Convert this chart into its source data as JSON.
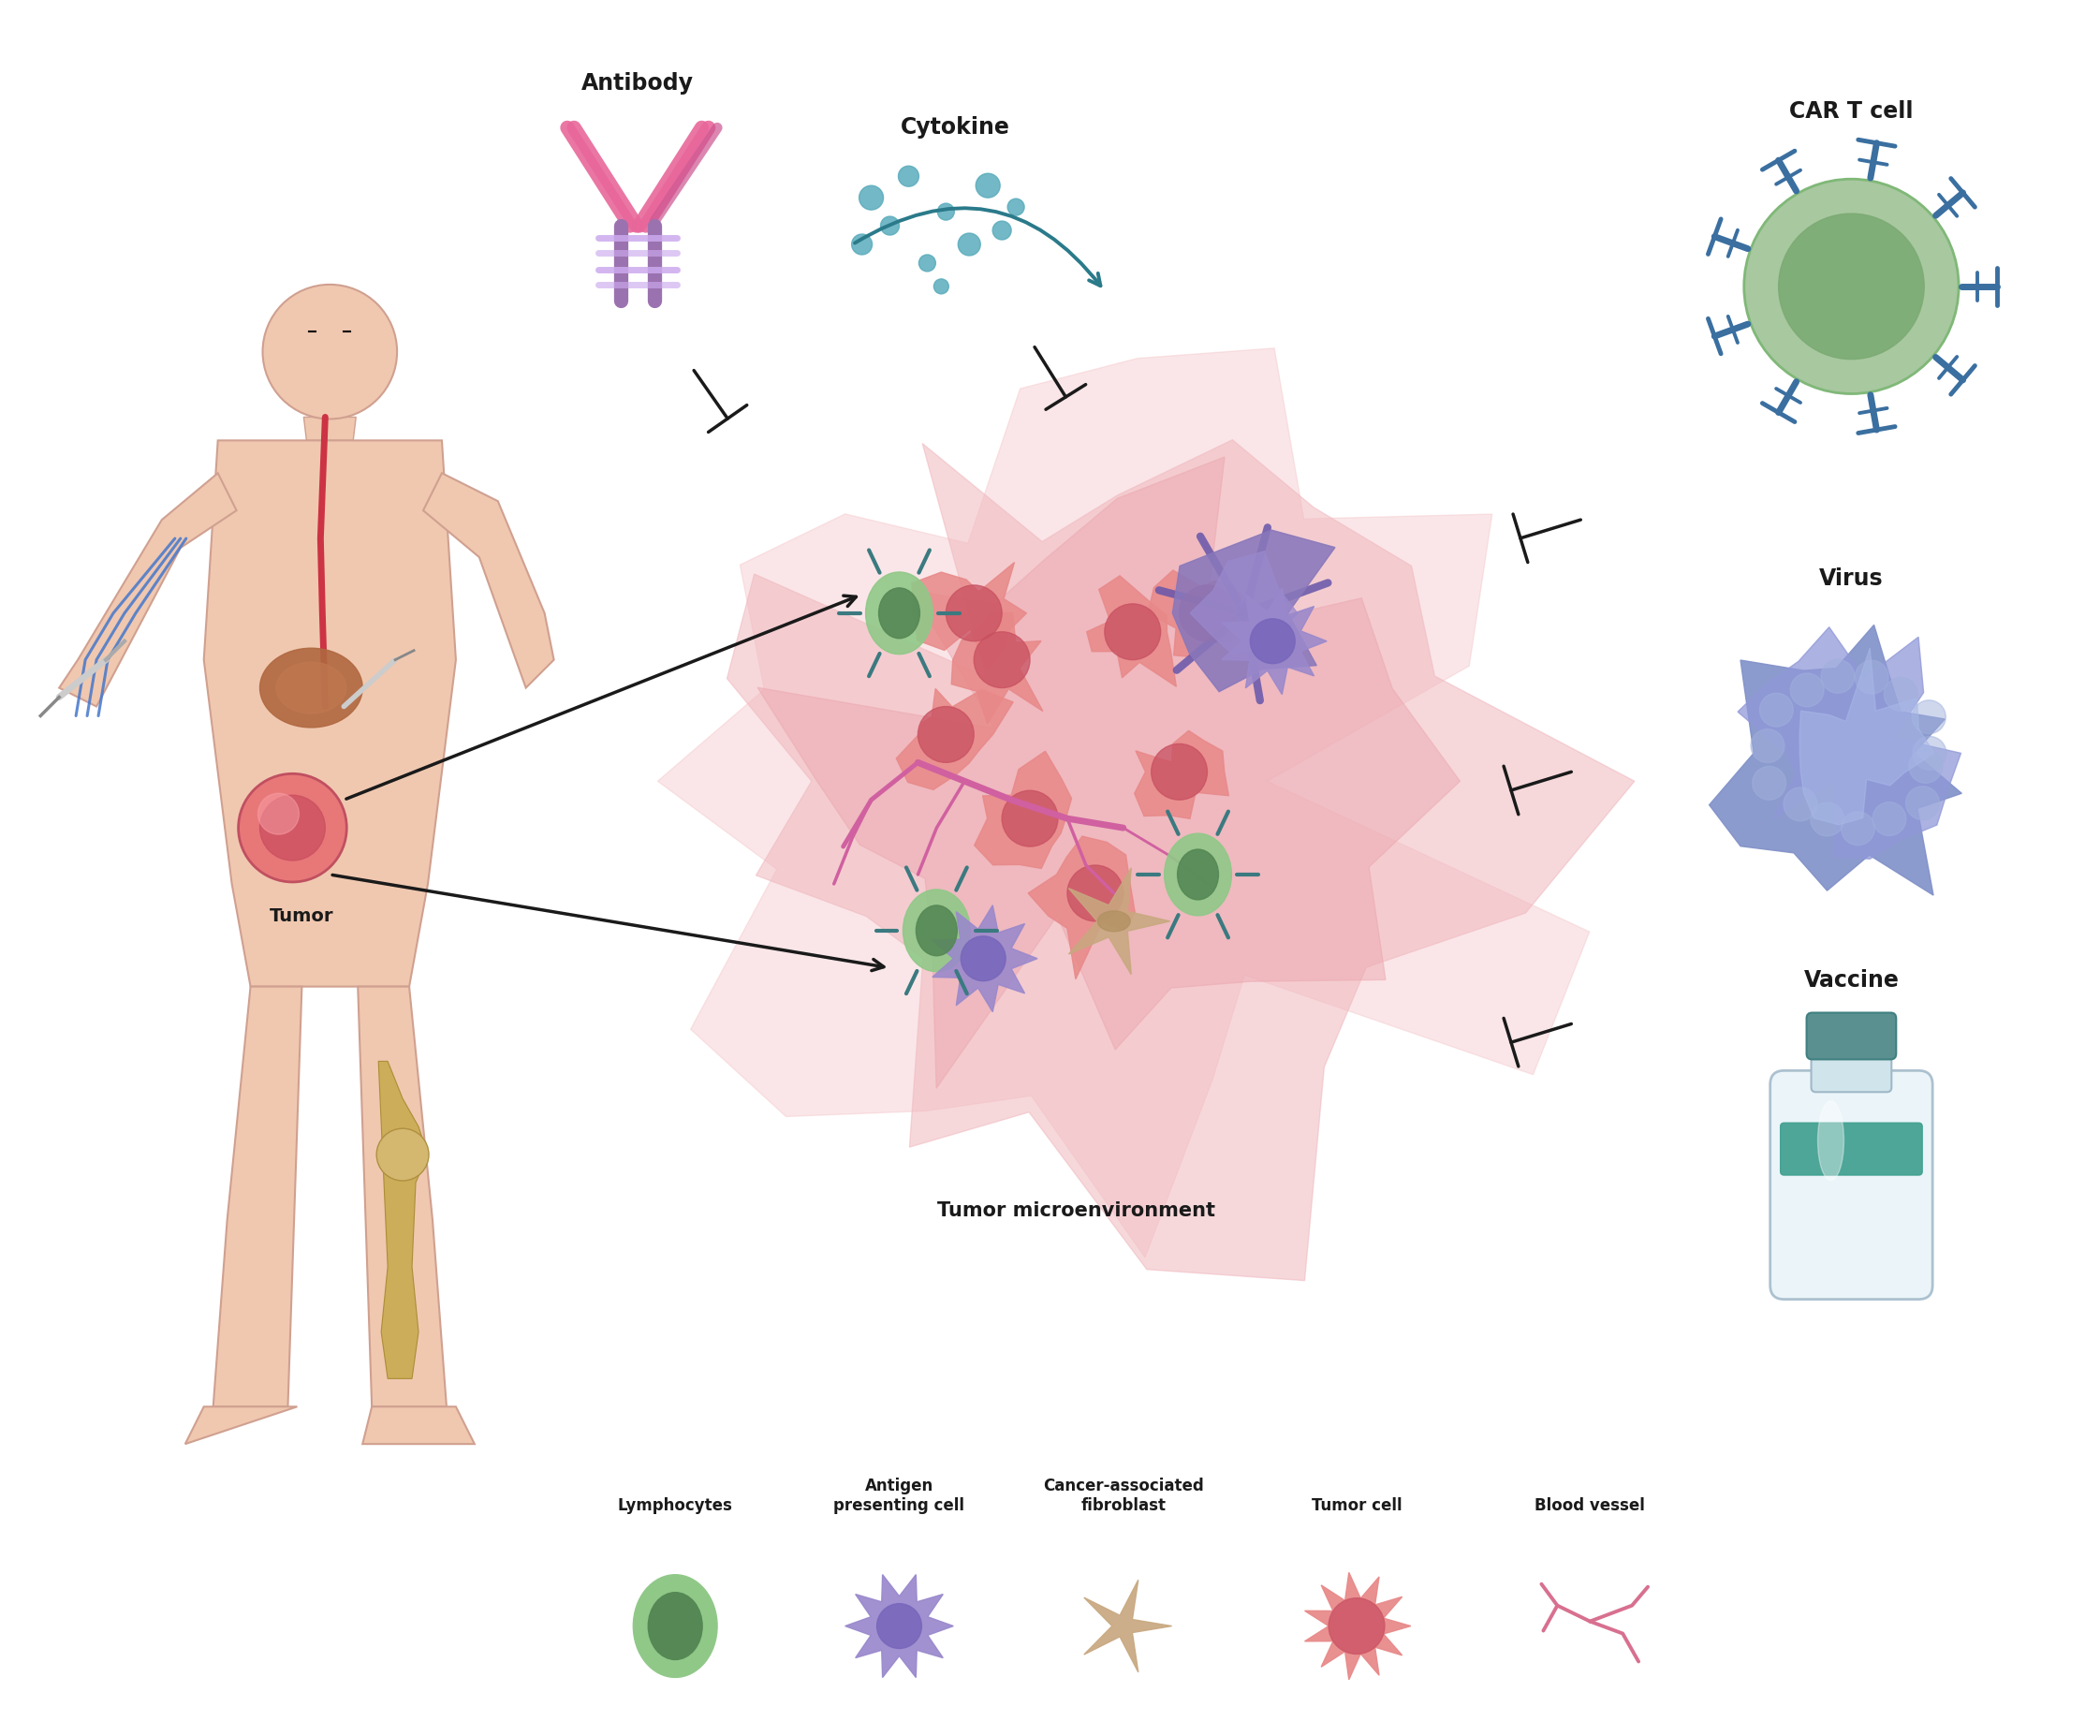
{
  "bg_color": "#ffffff",
  "labels": {
    "antibody": "Antibody",
    "cytokine": "Cytokine",
    "car_t_cell": "CAR T cell",
    "virus": "Virus",
    "vaccine": "Vaccine",
    "tumor": "Tumor",
    "tumor_microenv": "Tumor microenvironment",
    "lymphocytes": "Lymphocytes",
    "antigen_presenting_cell": "Antigen\npresenting cell",
    "cancer_associated_fibroblast": "Cancer-associated\nfibroblast",
    "tumor_cell": "Tumor cell",
    "blood_vessel": "Blood vessel"
  },
  "colors": {
    "antibody_pink": "#e8679a",
    "antibody_purple": "#9b72b0",
    "car_t_green_outer": "#a8c8a0",
    "car_t_green_inner": "#7aaa72",
    "car_t_blue": "#3a6fa0",
    "virus_blue": "#8899cc",
    "vaccine_glass": "#d0e8f0",
    "vaccine_teal": "#40a090",
    "tumor_mass_outer": "#f0b0b8",
    "tumor_mass_inner": "#e89098",
    "tumor_cell_red": "#e87878",
    "lymphocyte_green_outer": "#90c888",
    "lymphocyte_green_inner": "#558855",
    "antigen_purple": "#9988cc",
    "fibroblast_tan": "#c8a880",
    "blood_vessel_pink": "#d87090",
    "cytokine_teal": "#5aacbc",
    "cytokine_arrow": "#2a7a8a",
    "body_skin": "#f0c8b0",
    "body_outline": "#d0a090",
    "arrow_black": "#1a1a1a",
    "inhibitor_black": "#1a1a1a"
  }
}
